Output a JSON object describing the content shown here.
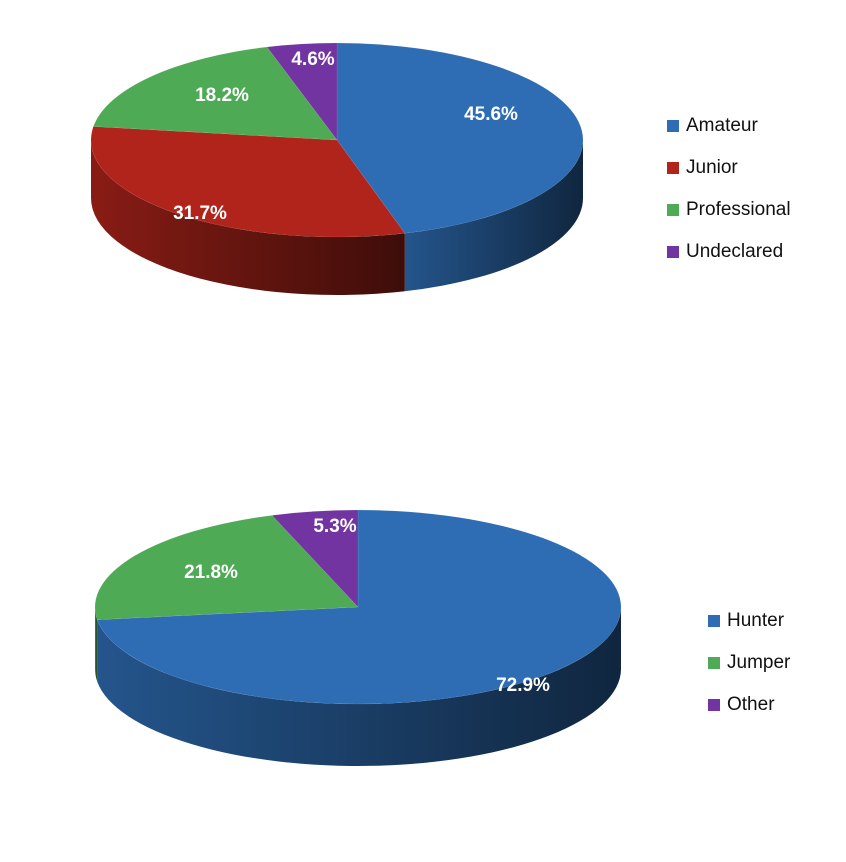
{
  "chart_data": [
    {
      "type": "pie",
      "title": "",
      "categories": [
        "Amateur",
        "Junior",
        "Professional",
        "Undeclared"
      ],
      "values": [
        45.6,
        31.7,
        18.2,
        4.6
      ],
      "labels": [
        "45.6%",
        "31.7%",
        "18.2%",
        "4.6%"
      ],
      "colors": [
        "#2e6db4",
        "#b0241b",
        "#4faa55",
        "#7234a0"
      ],
      "legend": "right",
      "style": "3d"
    },
    {
      "type": "pie",
      "title": "",
      "categories": [
        "Hunter",
        "Jumper",
        "Other"
      ],
      "values": [
        72.9,
        21.8,
        5.3
      ],
      "labels": [
        "72.9%",
        "21.8%",
        "5.3%"
      ],
      "colors": [
        "#2e6db4",
        "#4faa55",
        "#7234a0"
      ],
      "legend": "right",
      "style": "3d"
    }
  ]
}
